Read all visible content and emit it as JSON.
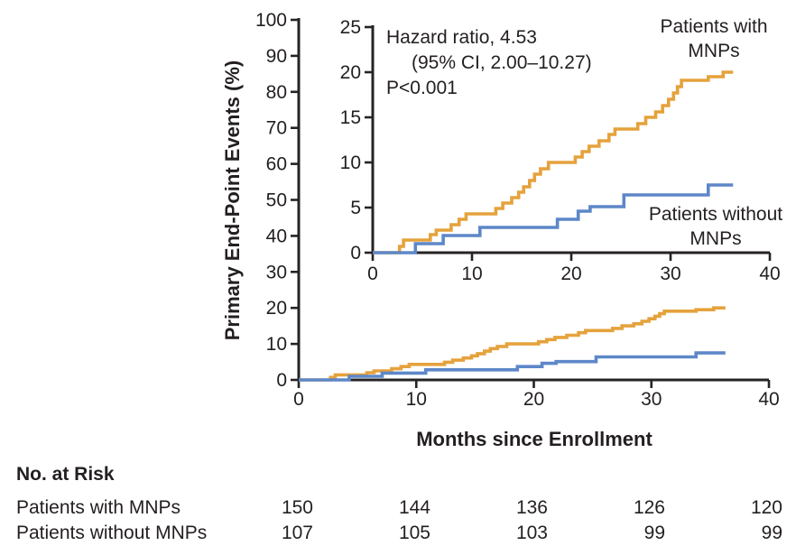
{
  "chart_data": {
    "type": "line",
    "step": true,
    "title": "",
    "xlabel": "Months since Enrollment",
    "ylabel": "Primary End-Point Events (%)",
    "annotation": {
      "line1": "Hazard ratio, 4.53",
      "line2": "(95% CI, 2.00–10.27)",
      "line3": "P<0.001"
    },
    "main_axis": {
      "xlim": [
        0,
        40
      ],
      "ylim": [
        0,
        100
      ],
      "x_ticks": [
        0,
        10,
        20,
        30,
        40
      ],
      "y_ticks": [
        0,
        10,
        20,
        30,
        40,
        50,
        60,
        70,
        80,
        90,
        100
      ]
    },
    "inset_axis": {
      "xlim": [
        0,
        40
      ],
      "ylim": [
        0,
        25
      ],
      "x_ticks": [
        0,
        10,
        20,
        30,
        40
      ],
      "y_ticks": [
        0,
        5,
        10,
        15,
        20,
        25
      ]
    },
    "series": [
      {
        "name": "Patients with MNPs",
        "label_line1": "Patients with",
        "label_line2": "MNPs",
        "color": "#E5A23C",
        "x_end": 36.3,
        "points": [
          [
            0,
            0
          ],
          [
            2.7,
            0.7
          ],
          [
            3.1,
            1.4
          ],
          [
            5.8,
            2.0
          ],
          [
            6.4,
            2.5
          ],
          [
            7.9,
            3.1
          ],
          [
            8.7,
            3.7
          ],
          [
            9.4,
            4.3
          ],
          [
            12.4,
            4.9
          ],
          [
            13.1,
            5.5
          ],
          [
            14.0,
            6.1
          ],
          [
            14.7,
            6.7
          ],
          [
            15.2,
            7.3
          ],
          [
            15.8,
            8.0
          ],
          [
            16.3,
            8.7
          ],
          [
            16.9,
            9.3
          ],
          [
            17.7,
            10.0
          ],
          [
            20.4,
            10.6
          ],
          [
            21.1,
            11.2
          ],
          [
            21.8,
            11.8
          ],
          [
            22.8,
            12.4
          ],
          [
            23.8,
            13.1
          ],
          [
            24.4,
            13.7
          ],
          [
            26.7,
            14.3
          ],
          [
            27.5,
            15.0
          ],
          [
            28.5,
            15.6
          ],
          [
            29.2,
            16.3
          ],
          [
            29.8,
            17.0
          ],
          [
            30.3,
            17.7
          ],
          [
            30.7,
            18.4
          ],
          [
            31.1,
            19.1
          ],
          [
            33.8,
            19.5
          ],
          [
            35.3,
            20.0
          ]
        ]
      },
      {
        "name": "Patients without MNPs",
        "label_line1": "Patients without",
        "label_line2": "MNPs",
        "color": "#5D87C8",
        "x_end": 36.3,
        "points": [
          [
            0,
            0
          ],
          [
            4.3,
            1.0
          ],
          [
            7.1,
            1.9
          ],
          [
            10.8,
            2.8
          ],
          [
            18.6,
            3.7
          ],
          [
            20.7,
            4.6
          ],
          [
            21.9,
            5.1
          ],
          [
            25.3,
            6.4
          ],
          [
            33.8,
            7.5
          ]
        ]
      }
    ]
  },
  "colors": {
    "with_mnps": "#E5A23C",
    "without_mnps": "#5D87C8",
    "axis": "#262324",
    "text": "#231F20"
  },
  "risk_table": {
    "title": "No. at Risk",
    "columns_months": [
      0,
      10,
      20,
      30,
      40
    ],
    "rows": [
      {
        "label": "Patients with MNPs",
        "values": [
          "150",
          "144",
          "136",
          "126",
          "120"
        ]
      },
      {
        "label": "Patients without MNPs",
        "values": [
          "107",
          "105",
          "103",
          "99",
          "99"
        ]
      }
    ]
  }
}
